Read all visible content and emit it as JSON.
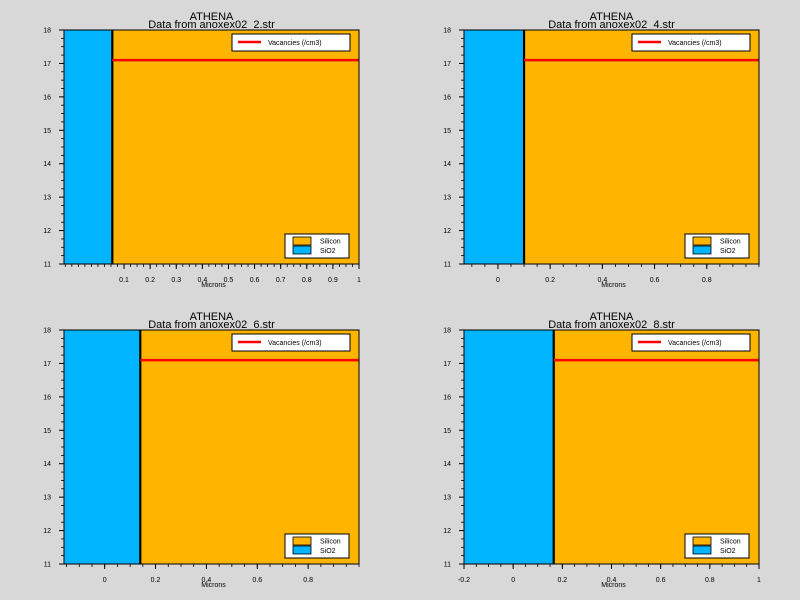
{
  "figure": {
    "background": "#d8d8d8"
  },
  "legend_labels": {
    "silicon": "Silicon",
    "sio2": "SiO2",
    "vacancies": "Vacancies (/cm3)"
  },
  "colors": {
    "silicon": "#ffb400",
    "sio2": "#00b4ff",
    "vacancies": "#ff0000",
    "boundary": "#000000"
  },
  "chart_data": [
    {
      "type": "area",
      "title": "ATHENA",
      "subtitle": "Data from anoxex02_2.str",
      "xlabel": "Microns",
      "ylabel": "",
      "xlim": [
        -0.13,
        1.0
      ],
      "ylim": [
        11,
        18
      ],
      "xticks": [
        0.1,
        0.2,
        0.3,
        0.4,
        0.5,
        0.6,
        0.7,
        0.8,
        0.9,
        1
      ],
      "xtick_labels": [
        "0.1",
        "0.2",
        "0.3",
        "0.4",
        "0.5",
        "0.6",
        "0.7",
        "0.8",
        "0.9",
        "1"
      ],
      "yticks": [
        11,
        12,
        13,
        14,
        15,
        16,
        17,
        18
      ],
      "ytick_labels": [
        "11",
        "12",
        "13",
        "14",
        "15",
        "16",
        "17",
        "18"
      ],
      "regions": [
        {
          "name": "SiO2",
          "x": [
            -0.13,
            0.055
          ]
        },
        {
          "name": "Silicon",
          "x": [
            0.055,
            1.0
          ]
        }
      ],
      "series": [
        {
          "name": "Vacancies (/cm3)",
          "x": [
            0.055,
            1.0
          ],
          "y": [
            17.1,
            17.1
          ]
        }
      ]
    },
    {
      "type": "area",
      "title": "ATHENA",
      "subtitle": "Data from anoxex02_4.str",
      "xlabel": "Microns",
      "ylabel": "",
      "xlim": [
        -0.13,
        1.0
      ],
      "ylim": [
        11,
        18
      ],
      "xticks": [
        0,
        0.2,
        0.4,
        0.6,
        0.8
      ],
      "xtick_labels": [
        "0",
        "0.2",
        "0.4",
        "0.6",
        "0.8"
      ],
      "yticks": [
        11,
        12,
        13,
        14,
        15,
        16,
        17,
        18
      ],
      "ytick_labels": [
        "11",
        "12",
        "13",
        "14",
        "15",
        "16",
        "17",
        "18"
      ],
      "regions": [
        {
          "name": "SiO2",
          "x": [
            -0.13,
            0.1
          ]
        },
        {
          "name": "Silicon",
          "x": [
            0.1,
            1.0
          ]
        }
      ],
      "series": [
        {
          "name": "Vacancies (/cm3)",
          "x": [
            0.1,
            1.0
          ],
          "y": [
            17.1,
            17.1
          ]
        }
      ]
    },
    {
      "type": "area",
      "title": "ATHENA",
      "subtitle": "Data from anoxex02_6.str",
      "xlabel": "Microns",
      "ylabel": "",
      "xlim": [
        -0.16,
        1.0
      ],
      "ylim": [
        11,
        18
      ],
      "xticks": [
        0,
        0.2,
        0.4,
        0.6,
        0.8
      ],
      "xtick_labels": [
        "0",
        "0.2",
        "0.4",
        "0.6",
        "0.8"
      ],
      "yticks": [
        11,
        12,
        13,
        14,
        15,
        16,
        17,
        18
      ],
      "ytick_labels": [
        "11",
        "12",
        "13",
        "14",
        "15",
        "16",
        "17",
        "18"
      ],
      "regions": [
        {
          "name": "SiO2",
          "x": [
            -0.16,
            0.14
          ]
        },
        {
          "name": "Silicon",
          "x": [
            0.14,
            1.0
          ]
        }
      ],
      "series": [
        {
          "name": "Vacancies (/cm3)",
          "x": [
            0.14,
            1.0
          ],
          "y": [
            17.1,
            17.1
          ]
        }
      ]
    },
    {
      "type": "area",
      "title": "ATHENA",
      "subtitle": "Data from anoxex02_8.str",
      "xlabel": "Microns",
      "ylabel": "",
      "xlim": [
        -0.2,
        1.0
      ],
      "ylim": [
        11,
        18
      ],
      "xticks": [
        -0.2,
        0,
        0.2,
        0.4,
        0.6,
        0.8,
        1
      ],
      "xtick_labels": [
        "-0.2",
        "0",
        "0.2",
        "0.4",
        "0.6",
        "0.8",
        "1"
      ],
      "yticks": [
        11,
        12,
        13,
        14,
        15,
        16,
        17,
        18
      ],
      "ytick_labels": [
        "11",
        "12",
        "13",
        "14",
        "15",
        "16",
        "17",
        "18"
      ],
      "regions": [
        {
          "name": "SiO2",
          "x": [
            -0.2,
            0.165
          ]
        },
        {
          "name": "Silicon",
          "x": [
            0.165,
            1.0
          ]
        }
      ],
      "series": [
        {
          "name": "Vacancies (/cm3)",
          "x": [
            0.165,
            1.0
          ],
          "y": [
            17.1,
            17.1
          ]
        }
      ]
    }
  ]
}
